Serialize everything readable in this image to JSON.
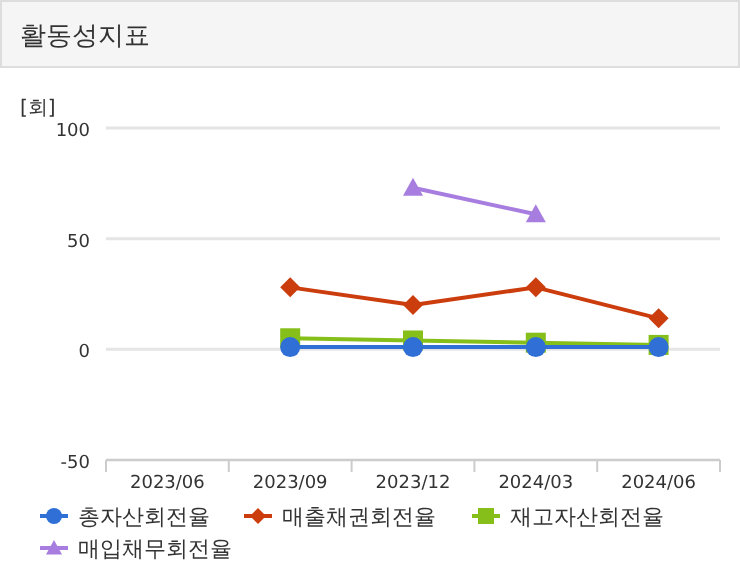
{
  "chart_data": {
    "type": "line",
    "title": "활동성지표",
    "ylabel": "[회]",
    "categories": [
      "2023/06",
      "2023/09",
      "2023/12",
      "2024/03",
      "2024/06"
    ],
    "ylim": [
      -50,
      100
    ],
    "yticks": [
      -50,
      0,
      50,
      100
    ],
    "grid": "y",
    "legend": "bottom",
    "line_style": "solid",
    "series": [
      {
        "name": "총자산회전율",
        "color": "#2f6fd6",
        "marker": "circle",
        "values": [
          null,
          1,
          1,
          1,
          1
        ]
      },
      {
        "name": "매출채권회전율",
        "color": "#cc3d0e",
        "marker": "diamond",
        "values": [
          null,
          28,
          20,
          28,
          14
        ]
      },
      {
        "name": "재고자산회전율",
        "color": "#86bf1a",
        "marker": "square",
        "values": [
          null,
          5,
          4,
          3,
          2
        ]
      },
      {
        "name": "매입채무회전율",
        "color": "#a77ee0",
        "marker": "triangle",
        "values": [
          null,
          null,
          73,
          61,
          null
        ]
      }
    ]
  }
}
